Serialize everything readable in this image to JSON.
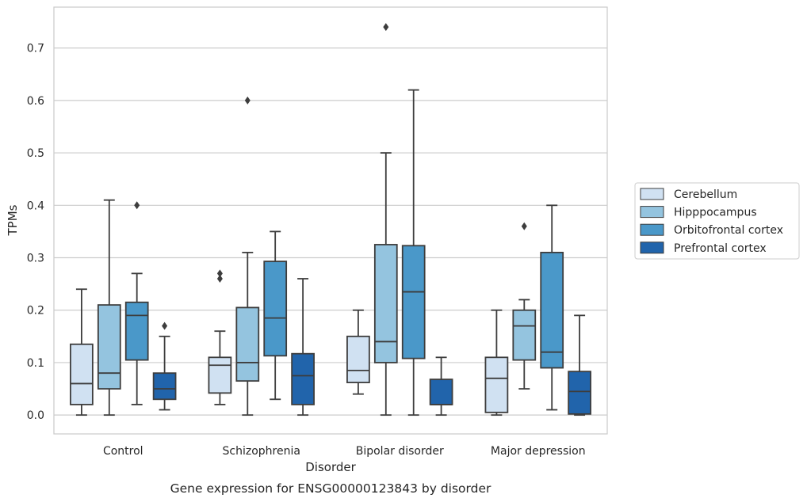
{
  "chart_data": {
    "type": "box",
    "caption": "Gene expression for ENSG00000123843 by disorder",
    "xlabel": "Disorder",
    "ylabel": "TPMs",
    "ylim": [
      -0.036,
      0.778
    ],
    "yticks": [
      0.0,
      0.1,
      0.2,
      0.3,
      0.4,
      0.5,
      0.6,
      0.7
    ],
    "ytick_labels": [
      "0.0",
      "0.1",
      "0.2",
      "0.3",
      "0.4",
      "0.5",
      "0.6",
      "0.7"
    ],
    "grid": "y",
    "legend_position": "right",
    "categories": [
      "Control",
      "Schizophrenia",
      "Bipolar disorder",
      "Major depression"
    ],
    "series": [
      {
        "name": "Cerebellum",
        "color": "#d0e1f2",
        "boxes": [
          {
            "whislo": 0.0,
            "q1": 0.02,
            "med": 0.06,
            "q3": 0.135,
            "whishi": 0.24,
            "fliers": []
          },
          {
            "whislo": 0.02,
            "q1": 0.042,
            "med": 0.095,
            "q3": 0.11,
            "whishi": 0.16,
            "fliers": [
              0.26,
              0.27
            ]
          },
          {
            "whislo": 0.04,
            "q1": 0.062,
            "med": 0.085,
            "q3": 0.15,
            "whishi": 0.2,
            "fliers": []
          },
          {
            "whislo": 0.0,
            "q1": 0.005,
            "med": 0.07,
            "q3": 0.11,
            "whishi": 0.2,
            "fliers": []
          }
        ]
      },
      {
        "name": "Hipppocampus",
        "color": "#94c4df",
        "boxes": [
          {
            "whislo": 0.0,
            "q1": 0.05,
            "med": 0.08,
            "q3": 0.21,
            "whishi": 0.41,
            "fliers": []
          },
          {
            "whislo": 0.0,
            "q1": 0.065,
            "med": 0.1,
            "q3": 0.205,
            "whishi": 0.31,
            "fliers": [
              0.6
            ]
          },
          {
            "whislo": 0.0,
            "q1": 0.1,
            "med": 0.14,
            "q3": 0.325,
            "whishi": 0.5,
            "fliers": [
              0.74
            ]
          },
          {
            "whislo": 0.05,
            "q1": 0.105,
            "med": 0.17,
            "q3": 0.2,
            "whishi": 0.22,
            "fliers": [
              0.36
            ]
          }
        ]
      },
      {
        "name": "Orbitofrontal cortex",
        "color": "#4a98c9",
        "boxes": [
          {
            "whislo": 0.02,
            "q1": 0.105,
            "med": 0.19,
            "q3": 0.215,
            "whishi": 0.27,
            "fliers": [
              0.4
            ]
          },
          {
            "whislo": 0.03,
            "q1": 0.113,
            "med": 0.185,
            "q3": 0.293,
            "whishi": 0.35,
            "fliers": []
          },
          {
            "whislo": 0.0,
            "q1": 0.108,
            "med": 0.235,
            "q3": 0.323,
            "whishi": 0.62,
            "fliers": []
          },
          {
            "whislo": 0.01,
            "q1": 0.09,
            "med": 0.12,
            "q3": 0.31,
            "whishi": 0.4,
            "fliers": []
          }
        ]
      },
      {
        "name": "Prefrontal cortex",
        "color": "#2164ab",
        "boxes": [
          {
            "whislo": 0.01,
            "q1": 0.03,
            "med": 0.05,
            "q3": 0.08,
            "whishi": 0.15,
            "fliers": [
              0.17
            ]
          },
          {
            "whislo": 0.0,
            "q1": 0.02,
            "med": 0.075,
            "q3": 0.117,
            "whishi": 0.26,
            "fliers": []
          },
          {
            "whislo": 0.0,
            "q1": 0.02,
            "med": 0.02,
            "q3": 0.068,
            "whishi": 0.11,
            "fliers": []
          },
          {
            "whislo": 0.0,
            "q1": 0.002,
            "med": 0.045,
            "q3": 0.083,
            "whishi": 0.19,
            "fliers": []
          }
        ]
      }
    ]
  }
}
